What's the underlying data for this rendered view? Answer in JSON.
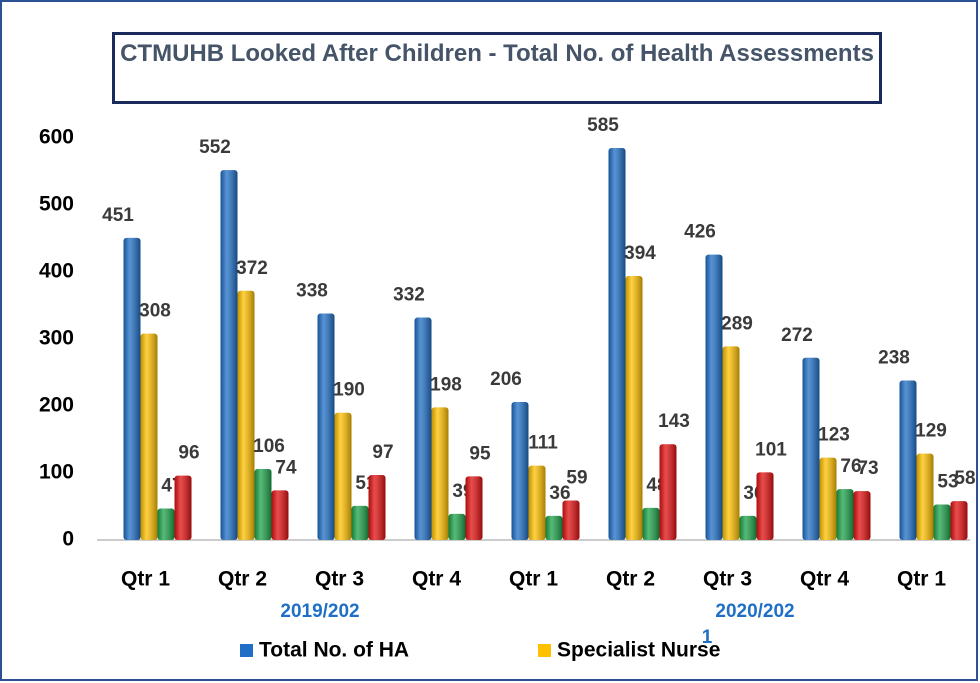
{
  "chart_data": {
    "type": "bar",
    "title": "CTMUHB Looked After Children - Total No. of Health Assessments",
    "categories": [
      "Qtr 1",
      "Qtr 2",
      "Qtr 3",
      "Qtr 4",
      "Qtr 1",
      "Qtr 2",
      "Qtr 3",
      "Qtr 4",
      "Qtr 1"
    ],
    "groups": [
      {
        "lines": [
          "2019/202"
        ]
      },
      {
        "lines": [
          "2020/202",
          "1"
        ]
      }
    ],
    "series": [
      {
        "name": "Total No. of HA",
        "color": "#1f6fc6",
        "values": [
          451,
          552,
          338,
          332,
          206,
          585,
          426,
          272,
          238
        ]
      },
      {
        "name": "Specialist Nurse",
        "color": "#ffc000",
        "values": [
          308,
          372,
          190,
          198,
          111,
          394,
          289,
          123,
          129
        ]
      },
      {
        "color": "#1da34a",
        "values": [
          47,
          106,
          51,
          39,
          36,
          48,
          36,
          76,
          53
        ]
      },
      {
        "color": "#e21010",
        "values": [
          96,
          74,
          97,
          95,
          59,
          143,
          101,
          73,
          58
        ]
      }
    ],
    "ylim": [
      0,
      600
    ],
    "yticks": [
      0,
      100,
      200,
      300,
      400,
      500,
      600
    ],
    "grid": false
  }
}
